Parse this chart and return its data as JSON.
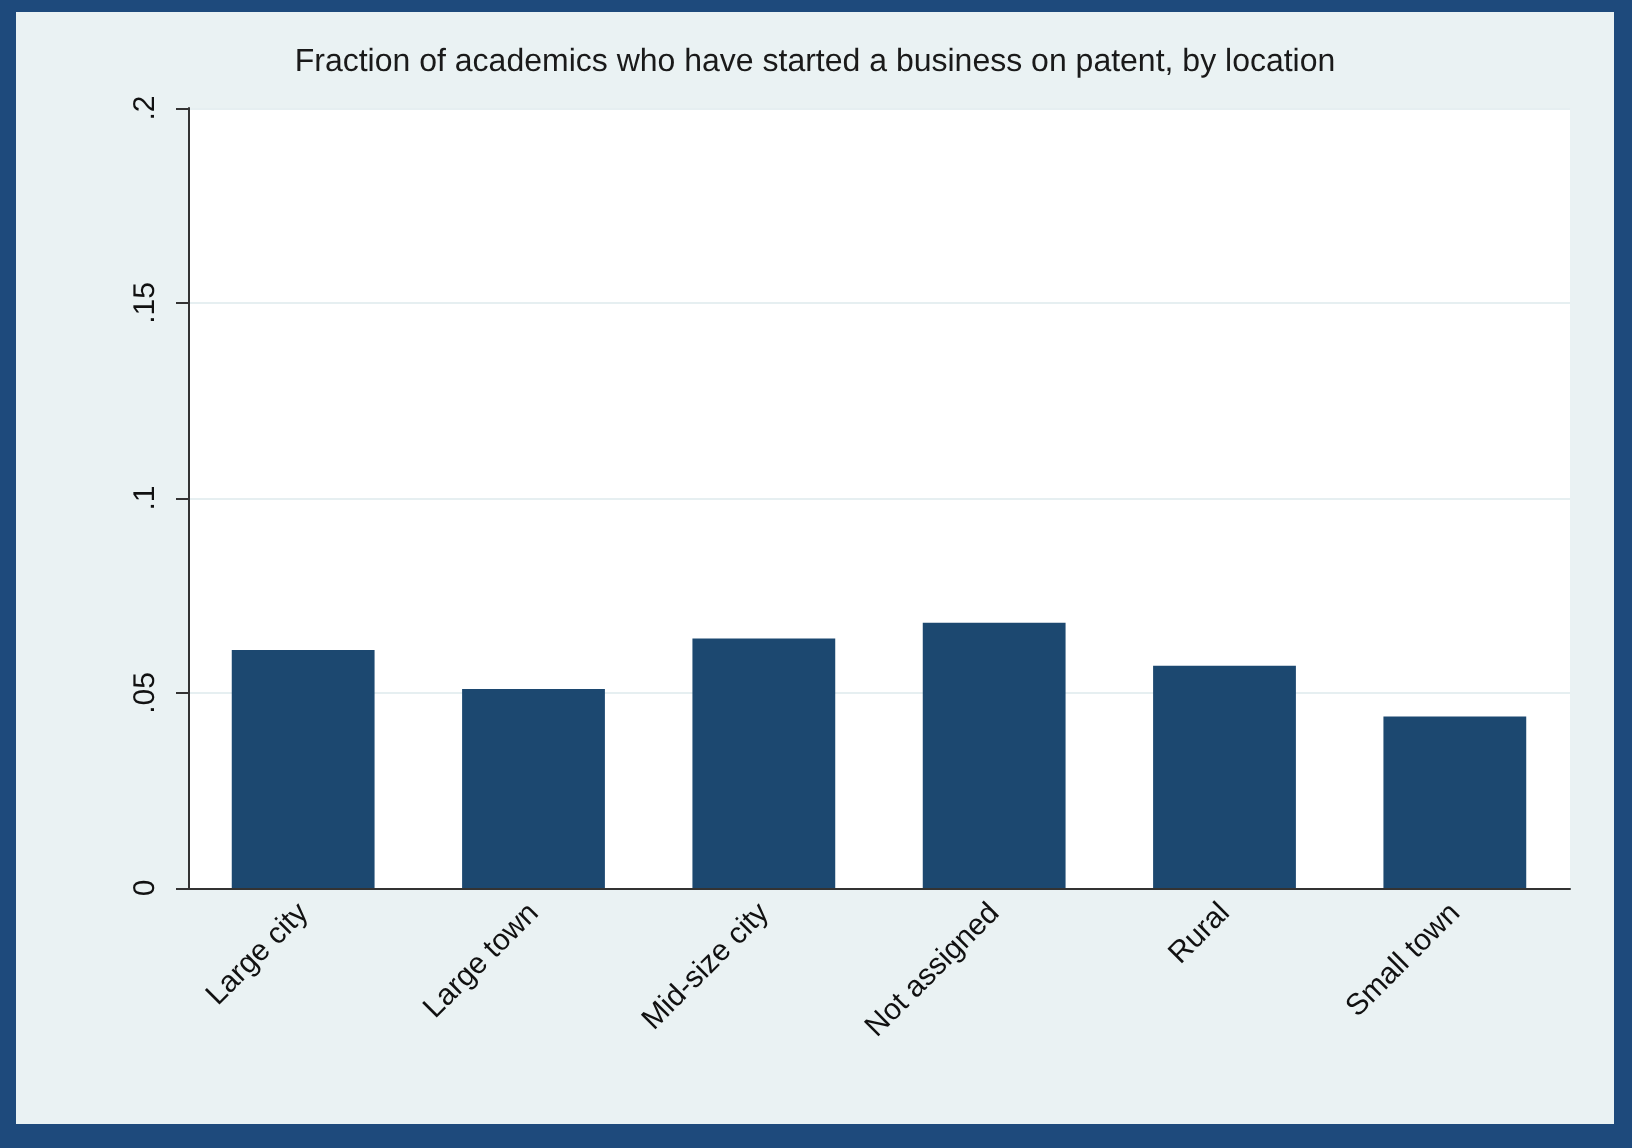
{
  "chart_data": {
    "type": "bar",
    "title": "Fraction of academics who have started a business on patent, by location",
    "categories": [
      "Large city",
      "Large town",
      "Mid-size city",
      "Not assigned",
      "Rural",
      "Small town"
    ],
    "values": [
      0.061,
      0.051,
      0.064,
      0.068,
      0.057,
      0.044
    ],
    "color": "#1c4870",
    "ylim": [
      0,
      0.2
    ],
    "yticks": [
      {
        "value": 0,
        "label": "0"
      },
      {
        "value": 0.05,
        "label": ".05"
      },
      {
        "value": 0.1,
        "label": ".1"
      },
      {
        "value": 0.15,
        "label": ".15"
      },
      {
        "value": 0.2,
        "label": ".2"
      }
    ],
    "grid": "y"
  }
}
